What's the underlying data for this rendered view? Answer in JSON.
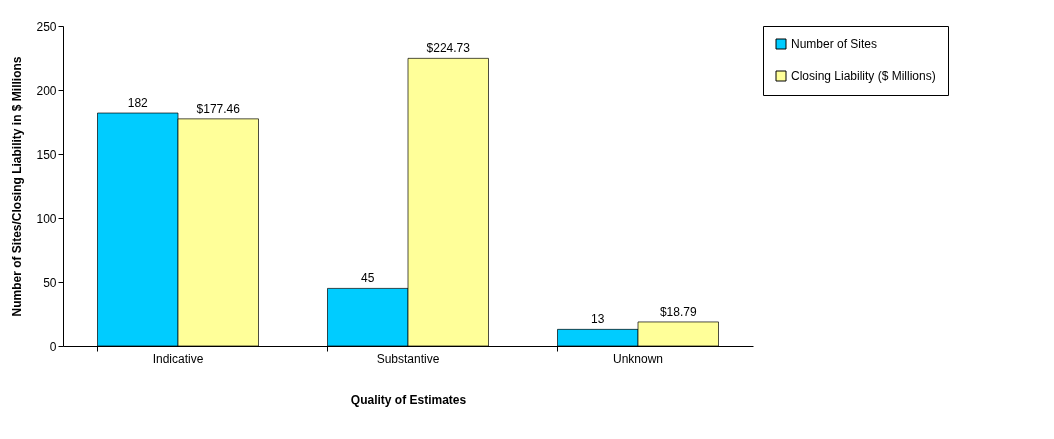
{
  "chart_data": {
    "type": "bar",
    "xlabel": "Quality of Estimates",
    "ylabel": "Number of Sites/Closing Liability in $ Millions",
    "categories": [
      "Indicative",
      "Substantive",
      "Unknown"
    ],
    "series": [
      {
        "name": "Number of Sites",
        "color": "#00ccff",
        "values": [
          182,
          45,
          13
        ],
        "value_labels": [
          "182",
          "45",
          "13"
        ]
      },
      {
        "name": "Closing Liability ($ Millions)",
        "color": "#ffff99",
        "values": [
          177.46,
          224.73,
          18.79
        ],
        "value_labels": [
          "$177.46",
          "$224.73",
          "$18.79"
        ]
      }
    ],
    "ylim": [
      0,
      250
    ],
    "yticks": [
      0,
      50,
      100,
      150,
      200,
      250
    ],
    "grid": false,
    "legend": "right"
  }
}
